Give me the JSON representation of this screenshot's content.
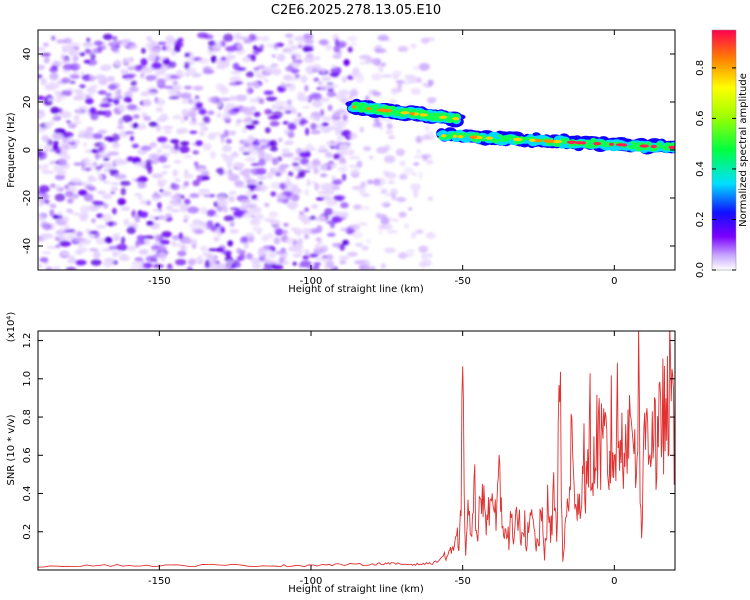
{
  "title": "C2E6.2025.278.13.05.E10",
  "chart_data": [
    {
      "type": "heatmap",
      "xlabel": "Height of straight line (km)",
      "ylabel": "Frequency (Hz)",
      "xlim": [
        -190,
        20
      ],
      "ylim": [
        -50,
        50
      ],
      "xticks": [
        -150,
        -100,
        -50,
        0
      ],
      "yticks": [
        -40,
        -20,
        0,
        20,
        40
      ],
      "colorbar": {
        "label": "Normalized spectral amplitude",
        "range": [
          0,
          0.95
        ],
        "ticks": [
          0,
          0.2,
          0.4,
          0.6,
          0.8
        ],
        "tick_labels": [
          "0.0",
          "0.2",
          "0.4",
          "0.6",
          "0.8"
        ]
      },
      "features": [
        {
          "name": "noise-region",
          "x_range": [
            -190,
            -87
          ],
          "y_range": [
            -50,
            48
          ],
          "amplitude": 0.05
        },
        {
          "name": "sparse-noise",
          "x_range": [
            -87,
            -60
          ],
          "y_range": [
            -50,
            48
          ],
          "amplitude": 0.02
        },
        {
          "name": "signal-segment-1",
          "x_range": [
            -86,
            -52
          ],
          "freq_start": 18,
          "freq_end": 13,
          "amplitude": 0.6
        },
        {
          "name": "signal-segment-2",
          "x_range": [
            -57,
            20
          ],
          "freq_start": 6,
          "freq_end": 1,
          "amplitude": 0.85
        }
      ]
    },
    {
      "type": "line",
      "xlabel": "Height of straight line (km)",
      "ylabel": "SNR (10 * v/v)",
      "scale_label": "(x10⁴)",
      "xlim": [
        -190,
        20
      ],
      "ylim": [
        0,
        1.25
      ],
      "xticks": [
        -150,
        -100,
        -50,
        0
      ],
      "yticks": [
        0.2,
        0.4,
        0.6,
        0.8,
        1.0,
        1.2
      ],
      "ytick_labels": [
        "0.2",
        "0.4",
        "0.6",
        "0.8",
        "1.0",
        "1.2"
      ],
      "series": [
        {
          "name": "SNR",
          "color": "#e03030",
          "x": [
            -190,
            -170,
            -150,
            -130,
            -110,
            -100,
            -90,
            -80,
            -75,
            -70,
            -65,
            -60,
            -58,
            -56,
            -55,
            -54,
            -53,
            -52,
            -51,
            -50,
            -49,
            -48,
            -47,
            -46,
            -45,
            -44,
            -43,
            -42,
            -41,
            -40,
            -39,
            -38,
            -37,
            -36,
            -35,
            -34,
            -33,
            -32,
            -31,
            -30,
            -29,
            -28,
            -27,
            -26,
            -25,
            -24,
            -23,
            -22,
            -21,
            -20,
            -19,
            -18,
            -17,
            -16,
            -15,
            -14,
            -13,
            -12,
            -11,
            -10,
            -9,
            -8,
            -7,
            -6,
            -5,
            -4,
            -3,
            -2,
            -1,
            0,
            1,
            2,
            3,
            4,
            5,
            6,
            7,
            8,
            9,
            10,
            11,
            12,
            13,
            14,
            15,
            16,
            17,
            18,
            19,
            20
          ],
          "y": [
            0.02,
            0.025,
            0.022,
            0.025,
            0.022,
            0.025,
            0.028,
            0.03,
            0.035,
            0.03,
            0.03,
            0.035,
            0.05,
            0.08,
            0.1,
            0.14,
            0.1,
            0.2,
            0.18,
            1.0,
            0.15,
            0.4,
            0.2,
            0.5,
            0.3,
            0.4,
            0.6,
            0.3,
            0.5,
            0.3,
            0.45,
            0.7,
            0.25,
            0.4,
            0.2,
            0.3,
            0.15,
            0.4,
            0.25,
            0.35,
            0.2,
            0.25,
            0.35,
            0.15,
            0.2,
            0.35,
            0.1,
            0.4,
            0.2,
            0.5,
            0.3,
            1.2,
            0.05,
            0.3,
            0.5,
            0.9,
            0.3,
            0.6,
            0.4,
            0.8,
            0.5,
            0.9,
            0.6,
            0.8,
            0.95,
            0.7,
            0.85,
            0.6,
            0.9,
            0.7,
            1.0,
            0.75,
            0.9,
            1.0,
            0.8,
            1.1,
            0.7,
            1.2,
            0.2,
            0.9,
            1.0,
            0.85,
            1.05,
            0.7,
            0.9,
            1.1,
            0.8,
            1.2,
            1.0,
            0.95
          ]
        }
      ]
    }
  ]
}
